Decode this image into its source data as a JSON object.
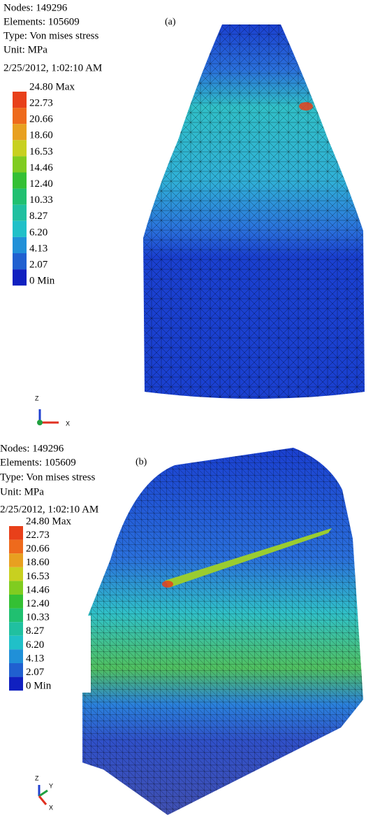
{
  "panels": [
    {
      "label": "(a)",
      "info": [
        "Nodes: 149296",
        "Elements: 105609",
        "Type: Von mises stress",
        "Unit: MPa",
        "2/25/2012, 1:02:10 AM"
      ],
      "legend": [
        "24.80 Max",
        "22.73",
        "20.66",
        "18.60",
        "16.53",
        "14.46",
        "12.40",
        "10.33",
        "8.27",
        "6.20",
        "4.13",
        "2.07",
        "0 Min"
      ],
      "axes": [
        "Z",
        "X"
      ]
    },
    {
      "label": "(b)",
      "info": [
        "Nodes: 149296",
        "Elements: 105609",
        "Type: Von mises stress",
        "Unit: MPa",
        "2/25/2012, 1:02:10 AM"
      ],
      "legend": [
        "24.80 Max",
        "22.73",
        "20.66",
        "18.60",
        "16.53",
        "14.46",
        "12.40",
        "10.33",
        "8.27",
        "6.20",
        "4.13",
        "2.07",
        "0 Min"
      ],
      "axes": [
        "Z",
        "Y",
        "X"
      ]
    }
  ],
  "legend_colors": [
    "#e8401a",
    "#ee6a1c",
    "#e8a020",
    "#c8d020",
    "#80cc20",
    "#34c034",
    "#20c070",
    "#20c0a0",
    "#20c0c8",
    "#2090d8",
    "#2060d0",
    "#1020c0"
  ]
}
